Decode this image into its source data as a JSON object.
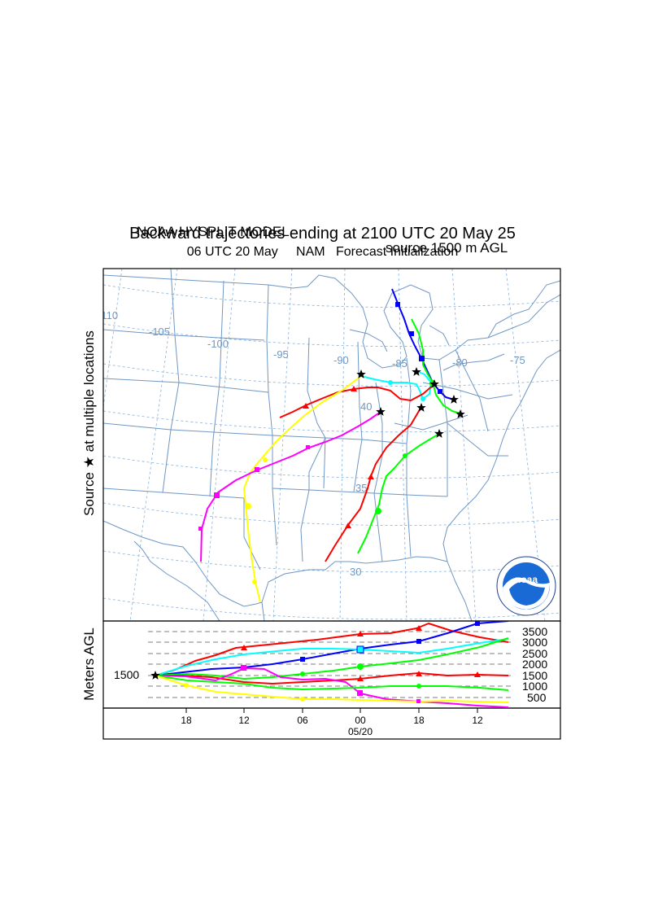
{
  "header": {
    "model": "NOAA HYSPLIT MODEL",
    "source": "source 1500 m AGL",
    "subtitle": "Backward trajectories ending at 2100 UTC 20 May 25",
    "init_time": "06 UTC 20 May",
    "met_data": "NAM",
    "init_label": "Forecast Initialization"
  },
  "map": {
    "side_label_prefix": "Source",
    "side_label_suffix": "at multiple locations",
    "lon_labels": [
      "-110",
      "-105",
      "-100",
      "-95",
      "-90",
      "-85",
      "-80",
      "-75"
    ],
    "lat_labels": [
      "40",
      "35",
      "30"
    ],
    "logo_text": "noaa",
    "colors": {
      "red": "#ff0000",
      "blue": "#0000ff",
      "green": "#00ff00",
      "cyan": "#00ffff",
      "magenta": "#ff00ff",
      "yellow": "#ffff00",
      "border": "#6f97c4",
      "grid": "#8ab0d8"
    }
  },
  "height_panel": {
    "ylabel": "Meters AGL",
    "start_label": "1500",
    "y_ticks": [
      "3500",
      "3000",
      "2500",
      "2000",
      "1500",
      "1000",
      "500"
    ],
    "x_ticks": [
      "18",
      "12",
      "06",
      "00",
      "18",
      "12"
    ],
    "date_label": "05/20"
  }
}
